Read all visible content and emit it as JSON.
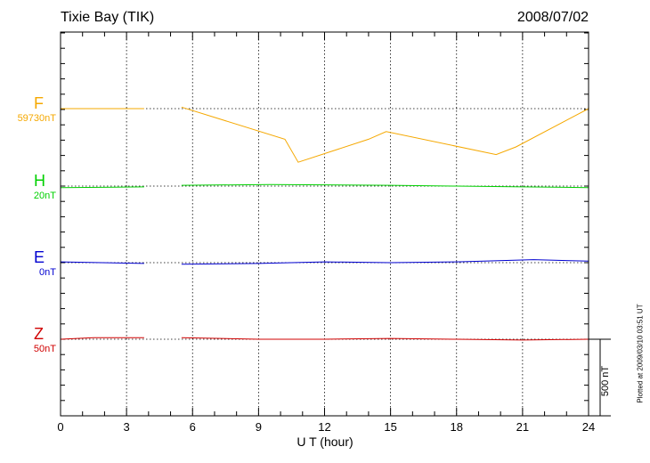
{
  "header": {
    "station": "Tixie Bay (TIK)",
    "date": "2008/07/02"
  },
  "chart_data": {
    "type": "line",
    "xlabel": "U T (hour)",
    "xlim": [
      0,
      24
    ],
    "x_ticks": [
      "0",
      "3",
      "6",
      "9",
      "12",
      "15",
      "18",
      "21",
      "24"
    ],
    "grid": true,
    "scale_bar_label": "500 nT",
    "plotted_note": "Plotted at 2009/03/10 03:51 UT",
    "data_gap_hours": [
      3.8,
      5.5
    ],
    "series": [
      {
        "name": "F",
        "baseline": "59730nT",
        "color": "#f5a800",
        "x": [
          0.0,
          3.8,
          5.5,
          10.2,
          10.8,
          14.0,
          14.8,
          19.8,
          20.7,
          24.0
        ],
        "values": [
          0,
          0,
          10,
          -200,
          -350,
          -200,
          -150,
          -300,
          -250,
          0
        ]
      },
      {
        "name": "H",
        "baseline": "20nT",
        "color": "#00d000",
        "x": [
          0,
          3.8,
          5.5,
          9.5,
          12,
          15,
          18,
          21,
          24
        ],
        "values": [
          -10,
          -5,
          5,
          10,
          8,
          5,
          0,
          -5,
          -10
        ]
      },
      {
        "name": "E",
        "baseline": "0nT",
        "color": "#0000d0",
        "x": [
          0,
          3.8,
          5.5,
          9,
          12,
          15,
          18,
          21.5,
          24
        ],
        "values": [
          5,
          -5,
          -10,
          -5,
          5,
          0,
          5,
          20,
          10
        ]
      },
      {
        "name": "Z",
        "baseline": "50nT",
        "color": "#d00000",
        "x": [
          0,
          1.5,
          3.8,
          5.5,
          9,
          12,
          15,
          18,
          21,
          24
        ],
        "values": [
          0,
          10,
          10,
          10,
          0,
          0,
          5,
          0,
          -5,
          0
        ]
      }
    ]
  }
}
